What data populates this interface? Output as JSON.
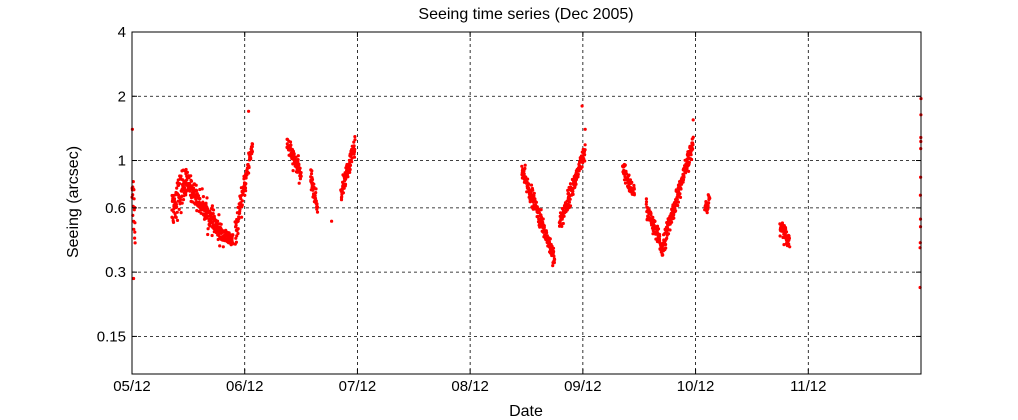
{
  "chart_data": {
    "type": "scatter",
    "title": "Seeing time series (Dec 2005)",
    "xlabel": "Date",
    "ylabel": "Seeing (arcsec)",
    "y_scale": "log",
    "ylim": [
      0.1,
      4
    ],
    "xlim": [
      "05/12",
      "12/12"
    ],
    "x_ticks": [
      "05/12",
      "06/12",
      "07/12",
      "08/12",
      "09/12",
      "10/12",
      "11/12"
    ],
    "y_ticks": [
      4,
      2,
      1,
      0.6,
      0.3,
      0.15
    ],
    "y_tick_labels": [
      "4",
      "2",
      "1",
      "0.6",
      "0.3",
      "0.15"
    ],
    "grid": true,
    "marker_color": "#ff0000",
    "segments": [
      {
        "x_start": "05/12 00:00",
        "x_end": "05/12 00:40",
        "y_start": 0.8,
        "y_end": 0.5,
        "spread": 0.4
      },
      {
        "x_start": "05/12 08:30",
        "x_end": "05/12 11:30",
        "y_start": 0.6,
        "y_end": 0.8,
        "spread": 0.25
      },
      {
        "x_start": "05/12 11:30",
        "x_end": "05/12 19:00",
        "y_start": 0.8,
        "y_end": 0.45,
        "spread": 0.15
      },
      {
        "x_start": "05/12 19:00",
        "x_end": "05/12 21:30",
        "y_start": 0.45,
        "y_end": 0.42,
        "spread": 0.1
      },
      {
        "x_start": "05/12 22:00",
        "x_end": "06/12 01:40",
        "y_start": 0.45,
        "y_end": 1.2,
        "spread": 0.15
      },
      {
        "x_start": "06/12 09:00",
        "x_end": "06/12 12:00",
        "y_start": 1.2,
        "y_end": 0.85,
        "spread": 0.12
      },
      {
        "x_start": "06/12 14:00",
        "x_end": "06/12 15:30",
        "y_start": 0.85,
        "y_end": 0.6,
        "spread": 0.12
      },
      {
        "x_start": "06/12 20:30",
        "x_end": "06/12 23:30",
        "y_start": 0.7,
        "y_end": 1.2,
        "spread": 0.12
      },
      {
        "x_start": "08/12 11:00",
        "x_end": "08/12 18:00",
        "y_start": 0.9,
        "y_end": 0.35,
        "spread": 0.12
      },
      {
        "x_start": "08/12 19:00",
        "x_end": "09/12 00:30",
        "y_start": 0.5,
        "y_end": 1.1,
        "spread": 0.12
      },
      {
        "x_start": "09/12 08:30",
        "x_end": "09/12 11:00",
        "y_start": 0.9,
        "y_end": 0.7,
        "spread": 0.12
      },
      {
        "x_start": "09/12 13:30",
        "x_end": "09/12 17:00",
        "y_start": 0.6,
        "y_end": 0.38,
        "spread": 0.12
      },
      {
        "x_start": "09/12 17:00",
        "x_end": "09/12 23:30",
        "y_start": 0.4,
        "y_end": 1.2,
        "spread": 0.12
      },
      {
        "x_start": "10/12 02:00",
        "x_end": "10/12 03:00",
        "y_start": 0.6,
        "y_end": 0.65,
        "spread": 0.1
      },
      {
        "x_start": "10/12 18:00",
        "x_end": "10/12 20:00",
        "y_start": 0.5,
        "y_end": 0.42,
        "spread": 0.1
      },
      {
        "x_start": "11/12 23:50",
        "x_end": "12/12 00:00",
        "y_start": 0.3,
        "y_end": 1.9,
        "spread": 0.2
      }
    ],
    "outliers": [
      {
        "x": "05/12 00:05",
        "y": 1.4
      },
      {
        "x": "05/12 00:20",
        "y": 0.28
      },
      {
        "x": "06/12 00:50",
        "y": 1.7
      },
      {
        "x": "06/12 18:30",
        "y": 0.52
      },
      {
        "x": "08/12 23:50",
        "y": 1.8
      },
      {
        "x": "09/12 00:30",
        "y": 1.4
      },
      {
        "x": "09/12 23:30",
        "y": 1.55
      },
      {
        "x": "12/12 00:00",
        "y": 1.95
      }
    ]
  }
}
